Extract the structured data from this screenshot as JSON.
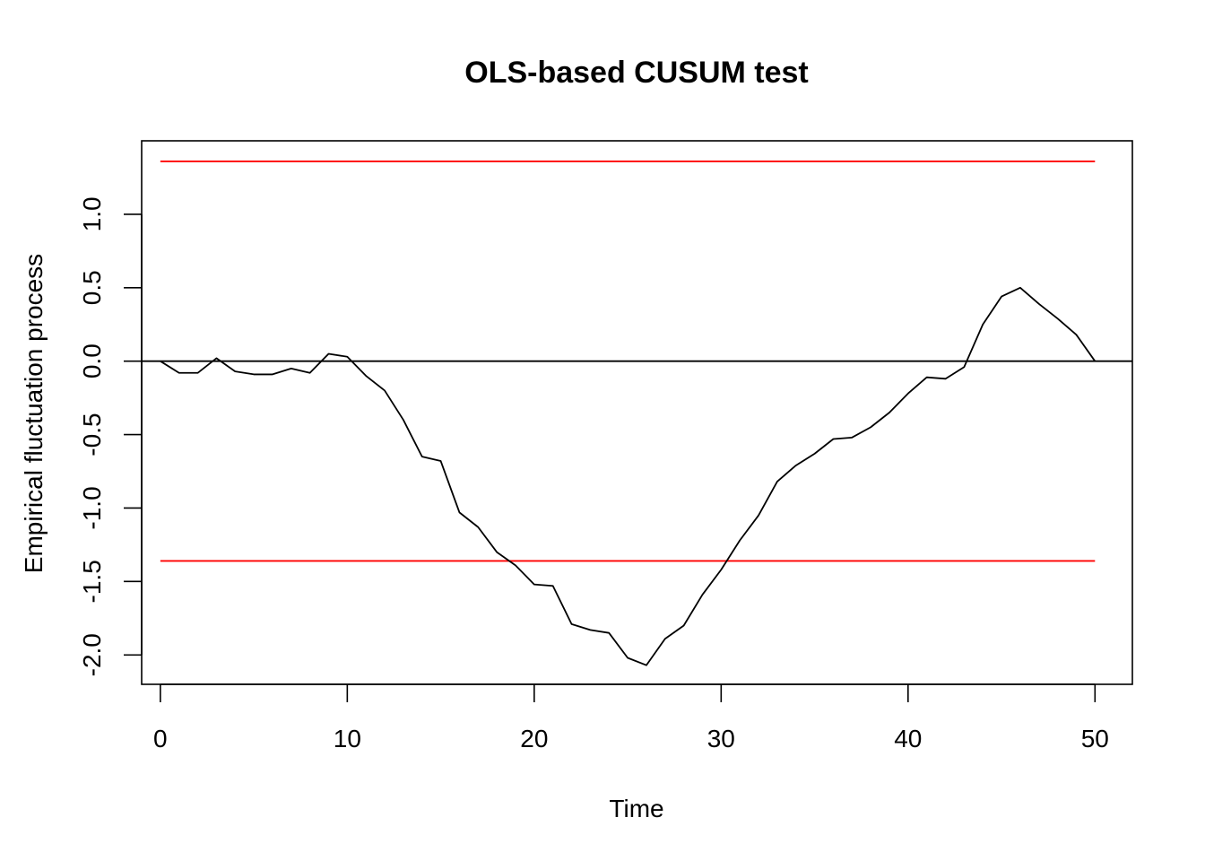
{
  "chart_data": {
    "type": "line",
    "title": "OLS-based CUSUM test",
    "xlabel": "Time",
    "ylabel": "Empirical fluctuation process",
    "xlim": [
      -1,
      52
    ],
    "ylim": [
      -2.2,
      1.5
    ],
    "x_ticks": [
      0,
      10,
      20,
      30,
      40,
      50
    ],
    "y_ticks": [
      -2.0,
      -1.5,
      -1.0,
      -0.5,
      0.0,
      0.5,
      1.0
    ],
    "x_tick_labels": [
      "0",
      "10",
      "20",
      "30",
      "40",
      "50"
    ],
    "y_tick_labels": [
      "-2.0",
      "-1.5",
      "-1.0",
      "-0.5",
      "0.0",
      "0.5",
      "1.0"
    ],
    "grid": false,
    "legend": "none",
    "series": [
      {
        "x": [
          0,
          1,
          2,
          3,
          4,
          5,
          6,
          7,
          8,
          9,
          10,
          11,
          12,
          13,
          14,
          15,
          16,
          17,
          18,
          19,
          20,
          21,
          22,
          23,
          24,
          25,
          26,
          27,
          28,
          29,
          30,
          31,
          32,
          33,
          34,
          35,
          36,
          37,
          38,
          39,
          40,
          41,
          42,
          43,
          44,
          45,
          46,
          47,
          48,
          49,
          50
        ],
        "values": [
          0.0,
          -0.08,
          -0.08,
          0.02,
          -0.07,
          -0.09,
          -0.09,
          -0.05,
          -0.08,
          0.05,
          0.03,
          -0.1,
          -0.2,
          -0.4,
          -0.65,
          -0.68,
          -1.03,
          -1.13,
          -1.3,
          -1.39,
          -1.52,
          -1.53,
          -1.79,
          -1.83,
          -1.85,
          -2.02,
          -2.07,
          -1.89,
          -1.8,
          -1.59,
          -1.42,
          -1.22,
          -1.05,
          -0.82,
          -0.71,
          -0.63,
          -0.53,
          -0.52,
          -0.45,
          -0.35,
          -0.22,
          -0.11,
          -0.12,
          -0.04,
          0.25,
          0.44,
          0.5,
          0.39,
          0.29,
          0.18,
          0.0
        ],
        "color": "#000000"
      }
    ],
    "boundaries": [
      {
        "x": [
          0,
          50
        ],
        "y": [
          1.36,
          1.36
        ],
        "color": "#ff0000"
      },
      {
        "x": [
          0,
          50
        ],
        "y": [
          -1.36,
          -1.36
        ],
        "color": "#ff0000"
      }
    ],
    "reference_line": {
      "y": 0.0,
      "color": "#000000"
    }
  }
}
